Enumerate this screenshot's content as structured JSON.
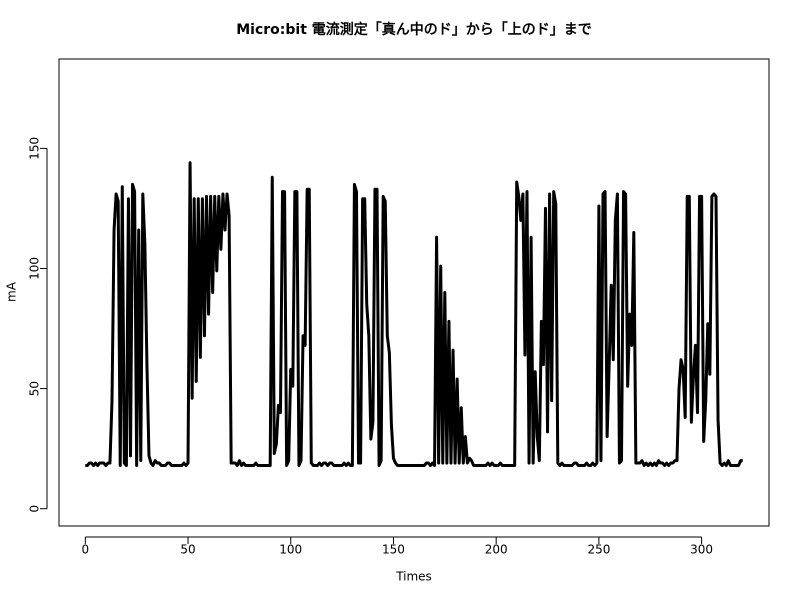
{
  "chart_data": {
    "type": "line",
    "title": "Micro:bit 電流測定「真ん中のド」から「上のド」まで",
    "x_label": "Times",
    "y_label": "mA",
    "color": "#000000",
    "xlim": [
      -12.8,
      332.8
    ],
    "ylim": [
      -7.2,
      187.2
    ],
    "xticks": [
      0,
      50,
      100,
      150,
      200,
      250,
      300
    ],
    "yticks": [
      0,
      50,
      100,
      150
    ],
    "x": [
      0,
      1,
      2,
      3,
      4,
      5,
      6,
      7,
      8,
      9,
      10,
      11,
      12,
      13,
      14,
      15,
      16,
      17,
      18,
      19,
      20,
      21,
      22,
      23,
      24,
      25,
      26,
      27,
      28,
      29,
      30,
      31,
      32,
      33,
      34,
      35,
      36,
      37,
      38,
      39,
      40,
      41,
      42,
      43,
      44,
      45,
      46,
      47,
      48,
      49,
      50,
      51,
      52,
      53,
      54,
      55,
      56,
      57,
      58,
      59,
      60,
      61,
      62,
      63,
      64,
      65,
      66,
      67,
      68,
      69,
      70,
      71,
      72,
      73,
      74,
      75,
      76,
      77,
      78,
      79,
      80,
      81,
      82,
      83,
      84,
      85,
      86,
      87,
      88,
      89,
      90,
      91,
      92,
      93,
      94,
      95,
      96,
      97,
      98,
      99,
      100,
      101,
      102,
      103,
      104,
      105,
      106,
      107,
      108,
      109,
      110,
      111,
      112,
      113,
      114,
      115,
      116,
      117,
      118,
      119,
      120,
      121,
      122,
      123,
      124,
      125,
      126,
      127,
      128,
      129,
      130,
      131,
      132,
      133,
      134,
      135,
      136,
      137,
      138,
      139,
      140,
      141,
      142,
      143,
      144,
      145,
      146,
      147,
      148,
      149,
      150,
      151,
      152,
      153,
      154,
      155,
      156,
      157,
      158,
      159,
      160,
      161,
      162,
      163,
      164,
      165,
      166,
      167,
      168,
      169,
      170,
      171,
      172,
      173,
      174,
      175,
      176,
      177,
      178,
      179,
      180,
      181,
      182,
      183,
      184,
      185,
      186,
      187,
      188,
      189,
      190,
      191,
      192,
      193,
      194,
      195,
      196,
      197,
      198,
      199,
      200,
      201,
      202,
      203,
      204,
      205,
      206,
      207,
      208,
      209,
      210,
      211,
      212,
      213,
      214,
      215,
      216,
      217,
      218,
      219,
      220,
      221,
      222,
      223,
      224,
      225,
      226,
      227,
      228,
      229,
      230,
      231,
      232,
      233,
      234,
      235,
      236,
      237,
      238,
      239,
      240,
      241,
      242,
      243,
      244,
      245,
      246,
      247,
      248,
      249,
      250,
      251,
      252,
      253,
      254,
      255,
      256,
      257,
      258,
      259,
      260,
      261,
      262,
      263,
      264,
      265,
      266,
      267,
      268,
      269,
      270,
      271,
      272,
      273,
      274,
      275,
      276,
      277,
      278,
      279,
      280,
      281,
      282,
      283,
      284,
      285,
      286,
      287,
      288,
      289,
      290,
      291,
      292,
      293,
      294,
      295,
      296,
      297,
      298,
      299,
      300,
      301,
      302,
      303,
      304,
      305,
      306,
      307,
      308,
      309,
      310,
      311,
      312,
      313,
      314,
      315,
      316,
      317,
      318,
      319,
      320
    ],
    "values": [
      18,
      18,
      19,
      19,
      18,
      19,
      18,
      19,
      19,
      19,
      18,
      19,
      19,
      45,
      116,
      131,
      128,
      18,
      134,
      19,
      18,
      129,
      22,
      135,
      132,
      18,
      116,
      20,
      131,
      110,
      60,
      22,
      19,
      18,
      20,
      19,
      19,
      18,
      18,
      18,
      19,
      19,
      18,
      18,
      18,
      18,
      18,
      18,
      19,
      18,
      19,
      144,
      46,
      129,
      53,
      129,
      63,
      129,
      72,
      130,
      81,
      130,
      90,
      130,
      99,
      130,
      108,
      131,
      116,
      131,
      122,
      19,
      19,
      19,
      18,
      20,
      18,
      19,
      18,
      18,
      18,
      18,
      18,
      19,
      18,
      18,
      18,
      18,
      18,
      18,
      18,
      138,
      23,
      27,
      43,
      40,
      132,
      132,
      18,
      20,
      58,
      51,
      132,
      132,
      18,
      20,
      72,
      68,
      133,
      133,
      19,
      18,
      18,
      18,
      19,
      18,
      19,
      19,
      18,
      19,
      19,
      18,
      18,
      18,
      18,
      18,
      19,
      18,
      19,
      18,
      18,
      135,
      132,
      19,
      19,
      129,
      129,
      85,
      72,
      29,
      36,
      133,
      133,
      18,
      20,
      130,
      128,
      72,
      65,
      35,
      21,
      19,
      18,
      18,
      18,
      18,
      18,
      18,
      18,
      18,
      18,
      18,
      18,
      18,
      18,
      18,
      19,
      19,
      18,
      19,
      18,
      113,
      19,
      101,
      19,
      90,
      19,
      78,
      19,
      66,
      19,
      54,
      19,
      42,
      19,
      30,
      19,
      21,
      20,
      18,
      18,
      18,
      18,
      18,
      18,
      18,
      19,
      18,
      19,
      18,
      18,
      18,
      19,
      18,
      18,
      18,
      18,
      18,
      18,
      18,
      136,
      130,
      120,
      131,
      64,
      132,
      19,
      113,
      19,
      57,
      30,
      20,
      78,
      60,
      125,
      32,
      131,
      45,
      132,
      127,
      19,
      18,
      19,
      18,
      18,
      18,
      18,
      18,
      19,
      19,
      18,
      18,
      18,
      18,
      19,
      18,
      18,
      19,
      18,
      19,
      126,
      20,
      131,
      132,
      30,
      60,
      93,
      62,
      120,
      131,
      19,
      20,
      132,
      131,
      51,
      81,
      68,
      115,
      19,
      19,
      19,
      20,
      18,
      19,
      18,
      19,
      18,
      19,
      18,
      20,
      19,
      19,
      18,
      19,
      18,
      19,
      19,
      20,
      20,
      50,
      62,
      58,
      38,
      130,
      130,
      36,
      55,
      68,
      40,
      130,
      130,
      28,
      45,
      77,
      56,
      130,
      131,
      130,
      37,
      19,
      18,
      19,
      18,
      20,
      18,
      18,
      18,
      18,
      18,
      20,
      20
    ]
  }
}
